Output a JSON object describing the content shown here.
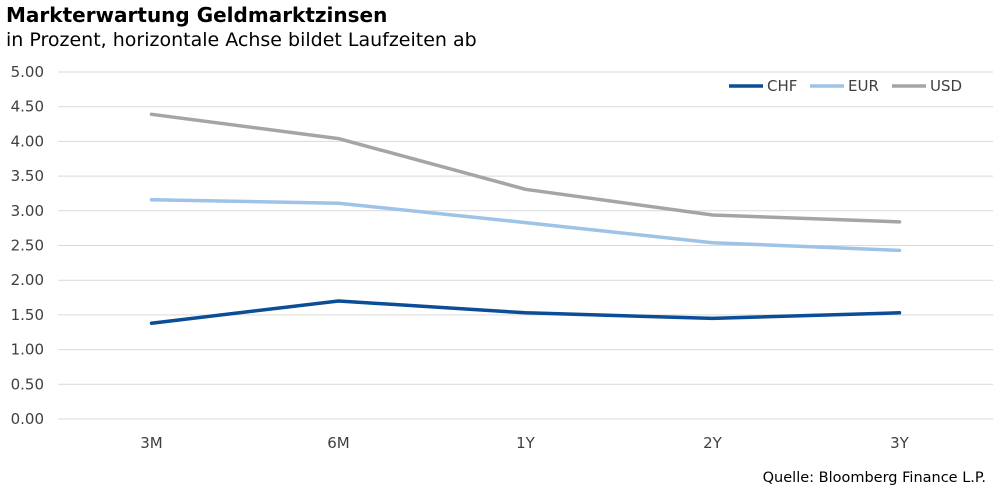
{
  "header": {
    "title": "Markterwartung Geldmarktzinsen",
    "subtitle": "in Prozent, horizontale Achse bildet Laufzeiten ab"
  },
  "footer": {
    "source": "Quelle: Bloomberg Finance L.P."
  },
  "chart_data": {
    "type": "line",
    "title": "Markterwartung Geldmarktzinsen",
    "subtitle": "in Prozent, horizontale Achse bildet Laufzeiten ab",
    "xlabel": "",
    "ylabel": "",
    "categories": [
      "3M",
      "6M",
      "1Y",
      "2Y",
      "3Y"
    ],
    "ylim": [
      0,
      5
    ],
    "yticks": [
      "0.00",
      "0.50",
      "1.00",
      "1.50",
      "2.00",
      "2.50",
      "3.00",
      "3.50",
      "4.00",
      "4.50",
      "5.00"
    ],
    "grid": true,
    "legend": "top-right",
    "series": [
      {
        "name": "CHF",
        "color": "#0b4d96",
        "values": [
          1.38,
          1.7,
          1.53,
          1.45,
          1.53
        ]
      },
      {
        "name": "EUR",
        "color": "#9ec3e6",
        "values": [
          3.16,
          3.11,
          2.83,
          2.54,
          2.43
        ]
      },
      {
        "name": "USD",
        "color": "#a5a5a5",
        "values": [
          4.39,
          4.04,
          3.31,
          2.94,
          2.84
        ]
      }
    ]
  }
}
